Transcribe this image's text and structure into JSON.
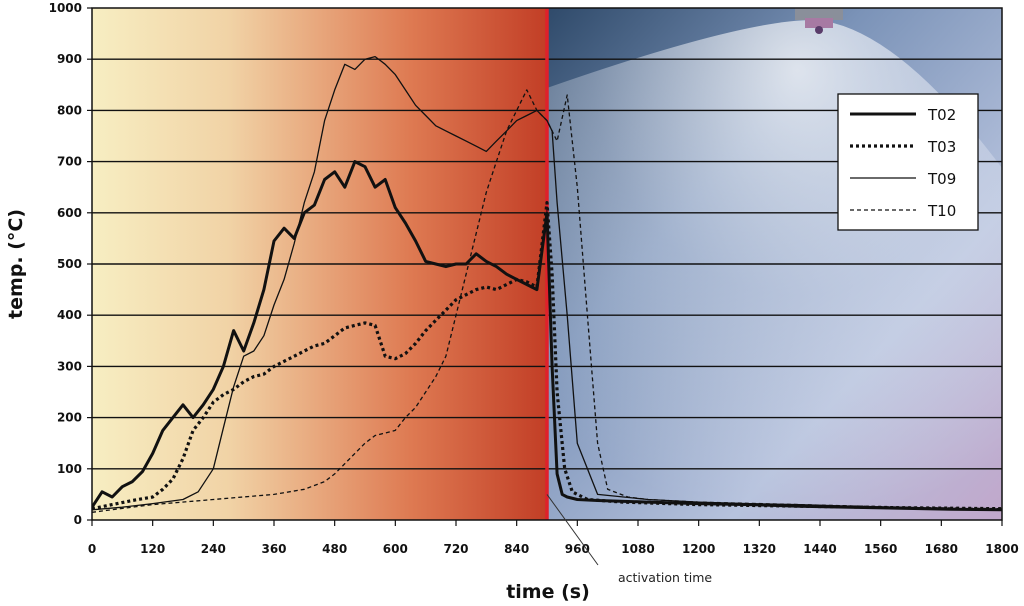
{
  "chart_data": {
    "type": "line",
    "title": "",
    "xlabel": "time (s)",
    "ylabel": "temp. (°C)",
    "xlim": [
      0,
      1800
    ],
    "ylim": [
      0,
      1000
    ],
    "x_ticks": [
      0,
      120,
      240,
      360,
      480,
      600,
      720,
      840,
      960,
      1080,
      1200,
      1320,
      1440,
      1560,
      1680,
      1800
    ],
    "y_ticks": [
      0,
      100,
      200,
      300,
      400,
      500,
      600,
      700,
      800,
      900,
      1000
    ],
    "grid": "horizontal",
    "legend_position": "top-right",
    "annotation": {
      "text": "activation time",
      "x": 900
    },
    "series": [
      {
        "name": "T02",
        "style": "thick-solid",
        "x": [
          0,
          20,
          40,
          60,
          80,
          100,
          120,
          140,
          160,
          180,
          200,
          220,
          240,
          260,
          280,
          300,
          320,
          340,
          360,
          380,
          400,
          420,
          440,
          460,
          480,
          500,
          520,
          540,
          560,
          580,
          600,
          620,
          640,
          660,
          680,
          700,
          720,
          740,
          760,
          780,
          800,
          820,
          840,
          860,
          880,
          900,
          910,
          920,
          930,
          940,
          960,
          1000,
          1100,
          1200,
          1300,
          1400,
          1500,
          1600,
          1700,
          1800
        ],
        "y": [
          25,
          55,
          45,
          65,
          75,
          95,
          130,
          175,
          200,
          225,
          200,
          225,
          255,
          300,
          370,
          330,
          385,
          450,
          545,
          570,
          550,
          600,
          615,
          665,
          680,
          650,
          700,
          690,
          650,
          665,
          610,
          580,
          545,
          505,
          500,
          495,
          500,
          500,
          520,
          505,
          495,
          480,
          470,
          460,
          450,
          600,
          300,
          90,
          50,
          45,
          40,
          38,
          35,
          32,
          30,
          27,
          25,
          23,
          21,
          20
        ]
      },
      {
        "name": "T03",
        "style": "thick-dotted",
        "x": [
          0,
          40,
          80,
          120,
          140,
          160,
          180,
          200,
          220,
          240,
          260,
          280,
          300,
          320,
          340,
          360,
          380,
          400,
          420,
          440,
          460,
          480,
          500,
          520,
          540,
          560,
          580,
          600,
          620,
          640,
          660,
          680,
          700,
          720,
          740,
          760,
          780,
          800,
          820,
          840,
          860,
          880,
          900,
          910,
          920,
          935,
          950,
          980,
          1050,
          1200,
          1400,
          1600,
          1800
        ],
        "y": [
          22,
          30,
          38,
          45,
          60,
          80,
          120,
          175,
          200,
          230,
          245,
          255,
          270,
          280,
          285,
          300,
          310,
          320,
          330,
          340,
          345,
          360,
          375,
          380,
          385,
          380,
          320,
          315,
          325,
          345,
          370,
          390,
          410,
          430,
          440,
          450,
          455,
          450,
          460,
          470,
          465,
          455,
          620,
          480,
          250,
          100,
          55,
          40,
          35,
          30,
          27,
          24,
          22
        ]
      },
      {
        "name": "T09",
        "style": "thin-solid",
        "x": [
          0,
          60,
          120,
          180,
          210,
          240,
          260,
          280,
          300,
          320,
          340,
          360,
          380,
          400,
          420,
          440,
          460,
          480,
          500,
          520,
          540,
          560,
          580,
          600,
          620,
          640,
          660,
          680,
          700,
          720,
          740,
          760,
          780,
          800,
          820,
          840,
          860,
          880,
          900,
          910,
          920,
          940,
          960,
          1000,
          1100,
          1200,
          1300,
          1400,
          1500,
          1600,
          1700,
          1800
        ],
        "y": [
          20,
          25,
          32,
          40,
          55,
          100,
          180,
          260,
          320,
          330,
          360,
          420,
          470,
          540,
          620,
          680,
          780,
          840,
          890,
          880,
          900,
          905,
          890,
          870,
          840,
          810,
          790,
          770,
          760,
          750,
          740,
          730,
          720,
          740,
          760,
          780,
          790,
          800,
          780,
          760,
          620,
          400,
          150,
          50,
          40,
          35,
          32,
          30,
          27,
          25,
          22,
          20
        ]
      },
      {
        "name": "T10",
        "style": "thin-dashed",
        "x": [
          0,
          120,
          240,
          360,
          420,
          460,
          480,
          500,
          520,
          540,
          560,
          580,
          600,
          620,
          640,
          660,
          680,
          700,
          720,
          740,
          760,
          780,
          800,
          820,
          840,
          860,
          880,
          900,
          920,
          940,
          960,
          980,
          1000,
          1020,
          1060,
          1100,
          1200,
          1400,
          1600,
          1800
        ],
        "y": [
          15,
          30,
          40,
          50,
          60,
          75,
          90,
          110,
          130,
          150,
          165,
          170,
          175,
          200,
          220,
          250,
          280,
          320,
          400,
          480,
          560,
          640,
          700,
          760,
          800,
          840,
          800,
          780,
          740,
          830,
          650,
          400,
          150,
          60,
          45,
          40,
          35,
          30,
          25,
          22
        ]
      }
    ]
  }
}
